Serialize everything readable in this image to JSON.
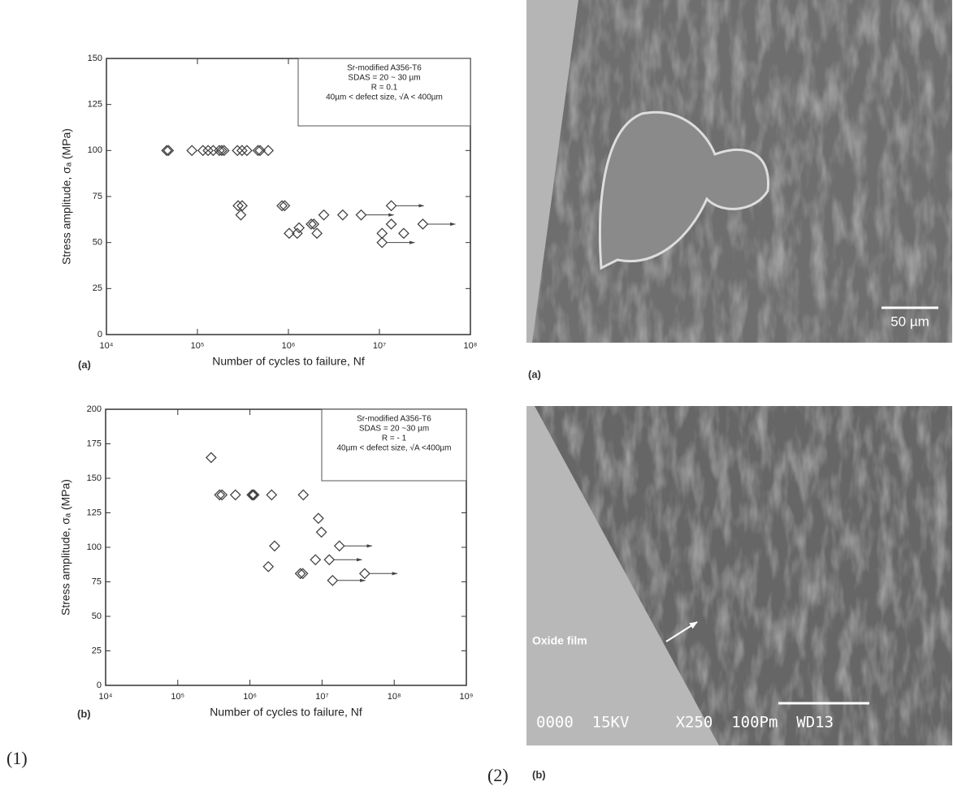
{
  "chart_data": [
    {
      "type": "scatter",
      "panel_label": "(a)",
      "xlabel": "Number of cycles to failure, Nf",
      "ylabel": "Stress amplitude, σₐ (MPa)",
      "legend_text": [
        "Sr-modified A356-T6",
        "SDAS = 20 ~ 30 µm",
        "R = 0.1",
        "40µm < defect size, √A < 400µm"
      ],
      "log_x": true,
      "marker": "diamond",
      "color": "#444444",
      "xlim": [
        10000,
        100000000
      ],
      "ylim": [
        0,
        150
      ],
      "xticks": [
        {
          "value": 10000,
          "label": "10⁴"
        },
        {
          "value": 100000,
          "label": "10⁵"
        },
        {
          "value": 1000000,
          "label": "10⁶"
        },
        {
          "value": 10000000,
          "label": "10⁷"
        },
        {
          "value": 100000000,
          "label": "10⁸"
        }
      ],
      "yticks": [
        0,
        25,
        50,
        75,
        100,
        125,
        150
      ],
      "series": [
        {
          "x": [
            46000,
            48000,
            87000,
            115000,
            131000,
            149000,
            174000,
            185000,
            196000,
            275000,
            309000,
            350000,
            463000,
            488000,
            600000,
            280000,
            310000,
            300000,
            850000,
            910000,
            1020000,
            1310000,
            1250000,
            1780000,
            1900000,
            2060000,
            2450000,
            3950000,
            6300000,
            10700000,
            10700000,
            13500000,
            13500000,
            18500000,
            30000000
          ],
          "y": [
            100,
            100,
            100,
            100,
            100,
            100,
            100,
            100,
            100,
            100,
            100,
            100,
            100,
            100,
            100,
            70,
            70,
            65,
            70,
            70,
            55,
            58,
            55,
            60,
            60,
            55,
            65,
            65,
            65,
            55,
            50,
            70,
            60,
            55,
            60
          ],
          "runout": [
            false,
            false,
            false,
            false,
            false,
            false,
            false,
            false,
            false,
            false,
            false,
            false,
            false,
            false,
            false,
            false,
            false,
            false,
            false,
            false,
            false,
            false,
            false,
            false,
            false,
            false,
            false,
            false,
            true,
            false,
            true,
            true,
            false,
            false,
            true
          ]
        }
      ]
    },
    {
      "type": "scatter",
      "panel_label": "(b)",
      "xlabel": "Number of cycles to failure, Nf",
      "ylabel": "Stress amplitude, σₐ (MPa)",
      "legend_text": [
        "Sr-modified A356-T6",
        "SDAS = 20 ~30 µm",
        "R = - 1",
        "40µm < defect size, √A <400µm"
      ],
      "log_x": true,
      "marker": "diamond",
      "color": "#444444",
      "xlim": [
        10000,
        1000000000
      ],
      "ylim": [
        0,
        200
      ],
      "xticks": [
        {
          "value": 10000,
          "label": "10⁴"
        },
        {
          "value": 100000,
          "label": "10⁵"
        },
        {
          "value": 1000000,
          "label": "10⁶"
        },
        {
          "value": 10000000,
          "label": "10⁷"
        },
        {
          "value": 100000000,
          "label": "10⁸"
        },
        {
          "value": 1000000000,
          "label": "10⁹"
        }
      ],
      "yticks": [
        0,
        25,
        50,
        75,
        100,
        125,
        150,
        175,
        200
      ],
      "series": [
        {
          "x": [
            290000,
            380000,
            410000,
            630000,
            1070000,
            1100000,
            1140000,
            2000000,
            5500000,
            2200000,
            1800000,
            8900000,
            9800000,
            8100000,
            12600000,
            17400000,
            14000000,
            39000000,
            5000000,
            5400000
          ],
          "y": [
            165,
            138,
            138,
            138,
            138,
            138,
            138,
            138,
            138,
            101,
            86,
            121,
            111,
            91,
            91,
            101,
            76,
            81,
            81,
            81
          ],
          "runout": [
            false,
            false,
            false,
            false,
            false,
            false,
            false,
            false,
            false,
            false,
            false,
            false,
            false,
            false,
            true,
            true,
            true,
            true,
            false,
            false
          ]
        }
      ]
    }
  ],
  "figure": {
    "left_label": "(1)",
    "right_label": "(2)",
    "micrographs": [
      {
        "label": "(a)",
        "scale_bar": "50 µm"
      },
      {
        "label": "(b)",
        "annotation": "Oxide film",
        "footer": "0000  15KV     X250  100Pm  WD13"
      }
    ]
  }
}
